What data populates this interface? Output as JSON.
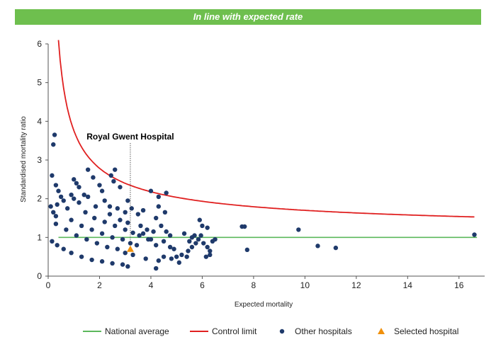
{
  "banner": {
    "text": "In line with expected rate"
  },
  "colors": {
    "banner": "#6ebf4e",
    "national_average": "#5cb85c",
    "control_limit": "#e02020",
    "other_hospitals": "#1f3a6b",
    "selected_hospital": "#f0900c"
  },
  "chart_data": {
    "type": "scatter",
    "title": "",
    "xlabel": "Expected mortality",
    "ylabel": "Standardised mortality ratio",
    "xlim": [
      0,
      17
    ],
    "ylim": [
      0,
      6
    ],
    "xticks": [
      0,
      2,
      4,
      6,
      8,
      10,
      12,
      14,
      16
    ],
    "yticks": [
      0,
      1,
      2,
      3,
      4,
      5,
      6
    ],
    "grid": false,
    "legend_position": "bottom",
    "annotation": {
      "text": "Royal Gwent Hospital",
      "x": 3.2
    },
    "series": [
      {
        "name": "National average",
        "kind": "line",
        "y_constant": 1,
        "x_range": [
          0.4,
          16.7
        ]
      },
      {
        "name": "Control limit",
        "kind": "curve",
        "x_range": [
          0.4,
          16.6
        ],
        "formula": "1 + 1.96 / sqrt(E) + 0.8 / E"
      },
      {
        "name": "Other hospitals",
        "kind": "scatter",
        "points": [
          [
            0.25,
            3.65
          ],
          [
            0.2,
            3.4
          ],
          [
            0.15,
            2.6
          ],
          [
            0.3,
            2.35
          ],
          [
            0.4,
            2.2
          ],
          [
            0.5,
            2.05
          ],
          [
            0.35,
            1.85
          ],
          [
            0.1,
            1.8
          ],
          [
            0.2,
            1.65
          ],
          [
            0.3,
            1.55
          ],
          [
            0.6,
            1.95
          ],
          [
            0.75,
            1.75
          ],
          [
            0.9,
            2.1
          ],
          [
            1.0,
            2.5
          ],
          [
            1.1,
            2.4
          ],
          [
            1.2,
            2.3
          ],
          [
            1.0,
            2.0
          ],
          [
            1.2,
            1.9
          ],
          [
            1.4,
            2.1
          ],
          [
            1.55,
            2.75
          ],
          [
            1.75,
            2.55
          ],
          [
            2.0,
            2.35
          ],
          [
            2.1,
            2.2
          ],
          [
            2.45,
            2.6
          ],
          [
            2.6,
            2.75
          ],
          [
            2.55,
            2.45
          ],
          [
            2.8,
            2.3
          ],
          [
            2.2,
            1.95
          ],
          [
            2.4,
            1.8
          ],
          [
            2.7,
            1.75
          ],
          [
            3.0,
            1.65
          ],
          [
            3.1,
            1.95
          ],
          [
            3.25,
            1.75
          ],
          [
            3.5,
            1.6
          ],
          [
            3.7,
            1.7
          ],
          [
            4.0,
            2.2
          ],
          [
            4.3,
            2.05
          ],
          [
            4.6,
            2.15
          ],
          [
            4.3,
            1.8
          ],
          [
            4.55,
            1.65
          ],
          [
            4.2,
            1.5
          ],
          [
            4.4,
            1.3
          ],
          [
            4.6,
            1.15
          ],
          [
            4.75,
            1.05
          ],
          [
            4.1,
            1.15
          ],
          [
            3.85,
            1.2
          ],
          [
            3.6,
            1.3
          ],
          [
            3.7,
            1.1
          ],
          [
            4.0,
            0.95
          ],
          [
            4.2,
            0.8
          ],
          [
            4.5,
            0.9
          ],
          [
            4.75,
            0.75
          ],
          [
            4.9,
            0.7
          ],
          [
            5.0,
            0.5
          ],
          [
            4.8,
            0.45
          ],
          [
            4.5,
            0.5
          ],
          [
            4.3,
            0.4
          ],
          [
            4.2,
            0.2
          ],
          [
            3.8,
            0.45
          ],
          [
            5.2,
            0.55
          ],
          [
            5.4,
            0.5
          ],
          [
            5.45,
            0.65
          ],
          [
            5.6,
            0.75
          ],
          [
            5.5,
            0.9
          ],
          [
            5.7,
            1.05
          ],
          [
            5.75,
            0.85
          ],
          [
            5.85,
            0.95
          ],
          [
            5.95,
            1.05
          ],
          [
            6.05,
            0.85
          ],
          [
            6.2,
            0.75
          ],
          [
            6.3,
            0.65
          ],
          [
            6.4,
            0.9
          ],
          [
            6.5,
            0.95
          ],
          [
            5.9,
            1.45
          ],
          [
            6.0,
            1.3
          ],
          [
            6.2,
            1.25
          ],
          [
            5.3,
            1.1
          ],
          [
            5.6,
            1.0
          ],
          [
            5.1,
            0.35
          ],
          [
            6.15,
            0.5
          ],
          [
            6.3,
            0.55
          ],
          [
            7.55,
            1.28
          ],
          [
            7.65,
            1.28
          ],
          [
            7.75,
            0.68
          ],
          [
            9.75,
            1.2
          ],
          [
            10.5,
            0.78
          ],
          [
            11.2,
            0.73
          ],
          [
            16.6,
            1.07
          ],
          [
            0.15,
            0.9
          ],
          [
            0.35,
            0.8
          ],
          [
            0.6,
            0.7
          ],
          [
            0.9,
            0.6
          ],
          [
            1.3,
            0.5
          ],
          [
            1.7,
            0.42
          ],
          [
            2.1,
            0.38
          ],
          [
            2.5,
            0.33
          ],
          [
            2.9,
            0.3
          ],
          [
            3.1,
            0.25
          ],
          [
            0.3,
            1.35
          ],
          [
            0.7,
            1.2
          ],
          [
            1.1,
            1.05
          ],
          [
            1.5,
            0.95
          ],
          [
            1.9,
            0.85
          ],
          [
            2.3,
            0.75
          ],
          [
            2.7,
            0.7
          ],
          [
            3.0,
            0.6
          ],
          [
            3.3,
            0.55
          ],
          [
            0.9,
            1.45
          ],
          [
            1.3,
            1.3
          ],
          [
            1.7,
            1.2
          ],
          [
            2.1,
            1.1
          ],
          [
            2.5,
            1.0
          ],
          [
            2.9,
            0.95
          ],
          [
            3.2,
            0.85
          ],
          [
            3.45,
            0.8
          ],
          [
            1.45,
            1.65
          ],
          [
            1.8,
            1.5
          ],
          [
            2.2,
            1.4
          ],
          [
            2.6,
            1.3
          ],
          [
            3.0,
            1.2
          ],
          [
            3.3,
            1.12
          ],
          [
            3.55,
            1.05
          ],
          [
            3.9,
            0.95
          ],
          [
            1.55,
            2.05
          ],
          [
            1.85,
            1.8
          ],
          [
            2.4,
            1.6
          ],
          [
            2.8,
            1.45
          ],
          [
            3.1,
            1.38
          ]
        ]
      },
      {
        "name": "Selected hospital",
        "kind": "scatter",
        "points": [
          [
            3.2,
            0.7
          ]
        ]
      }
    ]
  },
  "legend": {
    "items": [
      {
        "label": "National average"
      },
      {
        "label": "Control limit"
      },
      {
        "label": "Other hospitals"
      },
      {
        "label": "Selected hospital"
      }
    ]
  }
}
